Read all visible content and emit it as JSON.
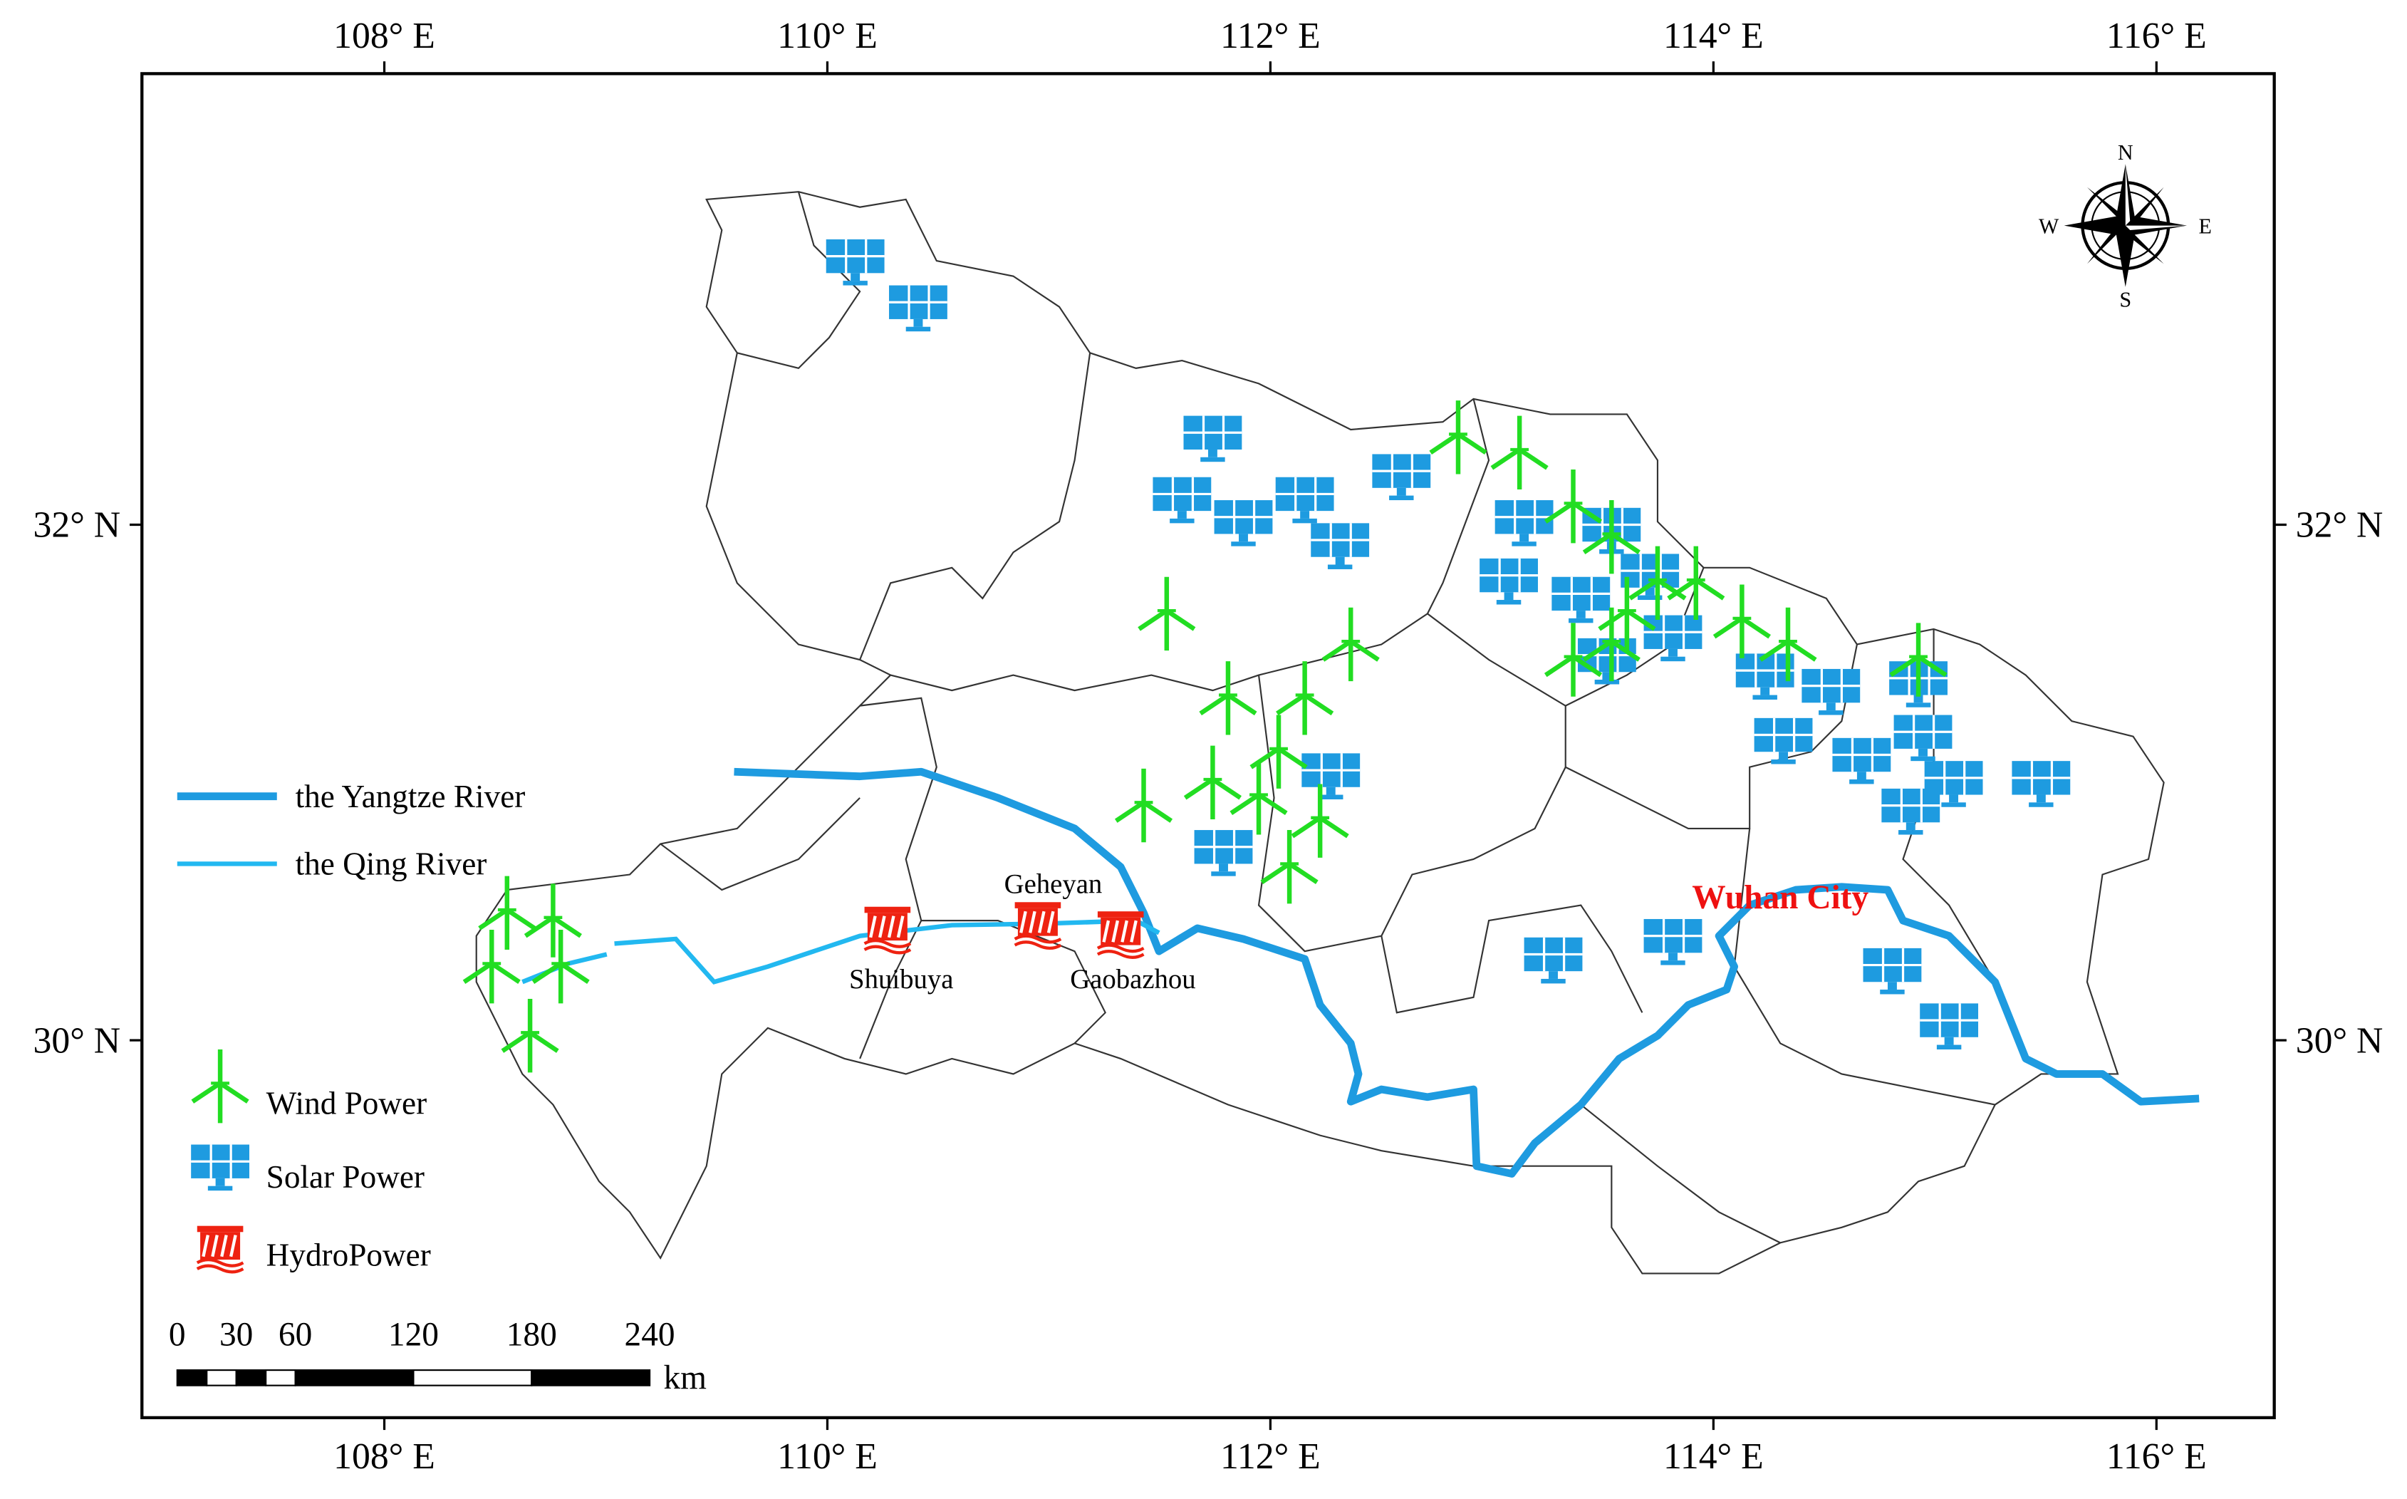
{
  "map": {
    "lon_ticks": [
      {
        "value": 108,
        "label": "108° E"
      },
      {
        "value": 110,
        "label": "110° E"
      },
      {
        "value": 112,
        "label": "112° E"
      },
      {
        "value": 114,
        "label": "114° E"
      },
      {
        "value": 116,
        "label": "116° E"
      }
    ],
    "lat_ticks": [
      {
        "value": 32,
        "label": "32° N"
      },
      {
        "value": 30,
        "label": "30° N"
      }
    ],
    "rivers": [
      "the Yangtze River",
      "the Qing River"
    ],
    "legend": [
      "Wind Power",
      "Solar Power",
      "HydroPower"
    ],
    "city": "Wuhan City",
    "stations": [
      "Shuibuya",
      "Geheyan",
      "Gaobazhou"
    ],
    "compass": {
      "north": "N",
      "east": "E",
      "south": "S",
      "west": "W"
    },
    "scale_bar": {
      "ticks": [
        0,
        30,
        60,
        120,
        180,
        240
      ],
      "unit": "km"
    }
  }
}
